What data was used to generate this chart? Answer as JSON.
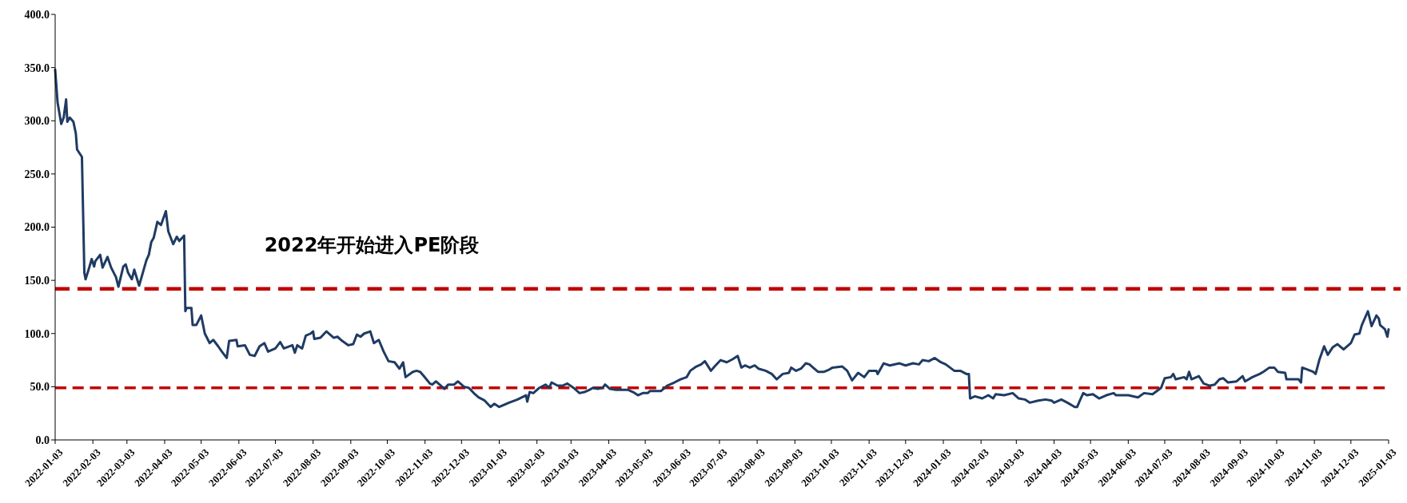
{
  "chart_data": {
    "type": "line",
    "annotations": [
      "2022年开始进入PE阶段"
    ],
    "x": [
      "2022-01-03",
      "2022-01-05",
      "2022-01-08",
      "2022-01-10",
      "2022-01-12",
      "2022-01-13",
      "2022-01-15",
      "2022-01-18",
      "2022-01-20",
      "2022-01-21",
      "2022-01-25",
      "2022-01-27",
      "2022-01-28",
      "2022-01-31",
      "2022-02-02",
      "2022-02-04",
      "2022-02-05",
      "2022-02-09",
      "2022-02-11",
      "2022-02-15",
      "2022-02-18",
      "2022-02-22",
      "2022-02-24",
      "2022-02-28",
      "2022-03-02",
      "2022-03-04",
      "2022-03-07",
      "2022-03-09",
      "2022-03-13",
      "2022-03-19",
      "2022-03-21",
      "2022-03-23",
      "2022-03-25",
      "2022-03-28",
      "2022-03-31",
      "2022-04-04",
      "2022-04-06",
      "2022-04-10",
      "2022-04-13",
      "2022-04-15",
      "2022-04-19",
      "2022-04-20",
      "2022-04-21",
      "2022-04-25",
      "2022-04-26",
      "2022-04-29",
      "2022-05-03",
      "2022-05-06",
      "2022-05-10",
      "2022-05-13",
      "2022-05-17",
      "2022-05-20",
      "2022-05-24",
      "2022-05-26",
      "2022-06-01",
      "2022-06-02",
      "2022-06-08",
      "2022-06-12",
      "2022-06-16",
      "2022-06-20",
      "2022-06-24",
      "2022-06-27",
      "2022-07-03",
      "2022-07-07",
      "2022-07-10",
      "2022-07-17",
      "2022-07-19",
      "2022-07-21",
      "2022-07-25",
      "2022-07-28",
      "2022-08-01",
      "2022-08-03",
      "2022-08-04",
      "2022-08-09",
      "2022-08-14",
      "2022-08-20",
      "2022-08-23",
      "2022-08-27",
      "2022-09-01",
      "2022-09-05",
      "2022-09-08",
      "2022-09-11",
      "2022-09-14",
      "2022-09-19",
      "2022-09-22",
      "2022-09-26",
      "2022-09-30",
      "2022-10-04",
      "2022-10-09",
      "2022-10-13",
      "2022-10-16",
      "2022-10-18",
      "2022-10-24",
      "2022-10-27",
      "2022-10-30",
      "2022-11-02",
      "2022-11-07",
      "2022-11-09",
      "2022-11-12",
      "2022-11-19",
      "2022-11-22",
      "2022-11-27",
      "2022-11-30",
      "2022-12-05",
      "2022-12-09",
      "2022-12-14",
      "2022-12-17",
      "2022-12-22",
      "2022-12-27",
      "2022-12-30",
      "2023-01-03",
      "2023-01-11",
      "2023-01-18",
      "2023-01-25",
      "2023-01-26",
      "2023-01-28",
      "2023-01-31",
      "2023-02-05",
      "2023-02-10",
      "2023-02-13",
      "2023-02-15",
      "2023-02-20",
      "2023-02-24",
      "2023-02-28",
      "2023-03-05",
      "2023-03-10",
      "2023-03-14",
      "2023-03-18",
      "2023-03-21",
      "2023-03-25",
      "2023-03-29",
      "2023-03-31",
      "2023-04-04",
      "2023-04-09",
      "2023-04-14",
      "2023-04-19",
      "2023-04-23",
      "2023-04-27",
      "2023-05-01",
      "2023-05-05",
      "2023-05-07",
      "2023-05-16",
      "2023-05-21",
      "2023-05-27",
      "2023-06-01",
      "2023-06-06",
      "2023-06-09",
      "2023-06-14",
      "2023-06-18",
      "2023-06-21",
      "2023-06-26",
      "2023-06-29",
      "2023-07-04",
      "2023-07-09",
      "2023-07-14",
      "2023-07-18",
      "2023-07-21",
      "2023-07-24",
      "2023-07-28",
      "2023-08-01",
      "2023-08-04",
      "2023-08-10",
      "2023-08-15",
      "2023-08-19",
      "2023-08-24",
      "2023-08-29",
      "2023-08-31",
      "2023-09-04",
      "2023-09-08",
      "2023-09-12",
      "2023-09-15",
      "2023-09-22",
      "2023-09-27",
      "2023-10-01",
      "2023-10-04",
      "2023-10-12",
      "2023-10-16",
      "2023-10-20",
      "2023-10-25",
      "2023-10-30",
      "2023-11-03",
      "2023-11-09",
      "2023-11-10",
      "2023-11-15",
      "2023-11-20",
      "2023-11-28",
      "2023-12-03",
      "2023-12-09",
      "2023-12-14",
      "2023-12-17",
      "2023-12-22",
      "2023-12-27",
      "2024-01-01",
      "2024-01-05",
      "2024-01-12",
      "2024-01-17",
      "2024-01-22",
      "2024-01-24",
      "2024-01-25",
      "2024-01-29",
      "2024-02-04",
      "2024-02-09",
      "2024-02-13",
      "2024-02-15",
      "2024-02-22",
      "2024-02-29",
      "2024-03-05",
      "2024-03-10",
      "2024-03-14",
      "2024-03-21",
      "2024-03-27",
      "2024-04-01",
      "2024-04-03",
      "2024-04-09",
      "2024-04-14",
      "2024-04-20",
      "2024-04-22",
      "2024-04-25",
      "2024-04-27",
      "2024-04-30",
      "2024-05-05",
      "2024-05-10",
      "2024-05-16",
      "2024-05-22",
      "2024-05-24",
      "2024-06-03",
      "2024-06-11",
      "2024-06-16",
      "2024-06-23",
      "2024-06-30",
      "2024-07-03",
      "2024-07-08",
      "2024-07-10",
      "2024-07-12",
      "2024-07-19",
      "2024-07-21",
      "2024-07-23",
      "2024-07-25",
      "2024-07-31",
      "2024-08-04",
      "2024-08-09",
      "2024-08-13",
      "2024-08-17",
      "2024-08-20",
      "2024-08-24",
      "2024-08-31",
      "2024-09-05",
      "2024-09-07",
      "2024-09-13",
      "2024-09-19",
      "2024-09-22",
      "2024-09-27",
      "2024-10-01",
      "2024-10-04",
      "2024-10-10",
      "2024-10-11",
      "2024-10-21",
      "2024-10-23",
      "2024-10-24",
      "2024-11-02",
      "2024-11-04",
      "2024-11-07",
      "2024-11-11",
      "2024-11-14",
      "2024-11-18",
      "2024-11-22",
      "2024-11-27",
      "2024-12-03",
      "2024-12-06",
      "2024-12-10",
      "2024-12-12",
      "2024-12-17",
      "2024-12-20",
      "2024-12-24",
      "2024-12-26",
      "2024-12-27",
      "2024-12-31",
      "2025-01-02",
      "2025-01-03"
    ],
    "series": [
      {
        "color": "#1f3b63",
        "values": [
          348,
          317,
          297,
          303,
          320,
          299,
          303,
          299,
          288,
          273,
          266,
          157,
          151,
          162,
          170,
          163,
          168,
          174,
          162,
          172,
          162,
          153,
          144,
          163,
          165,
          157,
          151,
          160,
          145,
          169,
          174,
          186,
          190,
          205,
          202,
          215,
          196,
          184,
          191,
          187,
          192,
          121,
          124,
          124,
          108,
          108,
          117,
          100,
          91,
          94,
          88,
          83,
          77,
          93,
          94,
          88,
          89,
          80,
          79,
          88,
          91,
          83,
          86,
          92,
          86,
          89,
          82,
          89,
          86,
          98,
          100,
          102,
          95,
          96,
          102,
          96,
          97,
          93,
          89,
          90,
          99,
          97,
          100,
          102,
          91,
          94,
          83,
          74,
          73,
          67,
          73,
          59,
          64,
          65,
          64,
          60,
          53,
          52,
          55,
          48,
          52,
          52,
          55,
          50,
          49,
          43,
          40,
          37,
          31,
          34,
          31,
          35,
          38,
          42,
          36,
          45,
          44,
          49,
          52,
          49,
          54,
          51,
          51,
          53,
          49,
          44,
          45,
          47,
          49,
          48,
          49,
          52,
          48,
          47,
          47,
          47,
          45,
          42,
          44,
          44,
          46,
          46,
          51,
          54,
          57,
          59,
          65,
          69,
          71,
          74,
          65,
          69,
          75,
          73,
          76,
          79,
          68,
          70,
          68,
          70,
          67,
          65,
          62,
          57,
          62,
          63,
          68,
          65,
          67,
          72,
          71,
          64,
          64,
          66,
          68,
          69,
          65,
          56,
          63,
          59,
          65,
          65,
          62,
          72,
          70,
          72,
          70,
          72,
          71,
          75,
          74,
          77,
          73,
          71,
          65,
          65,
          62,
          62,
          39,
          41,
          39,
          42,
          39,
          43,
          42,
          44,
          39,
          38,
          35,
          37,
          38,
          37,
          35,
          38,
          35,
          31,
          31,
          39,
          44,
          42,
          43,
          39,
          42,
          44,
          42,
          42,
          40,
          44,
          43,
          49,
          58,
          59,
          62,
          57,
          59,
          57,
          64,
          57,
          60,
          53,
          51,
          52,
          57,
          58,
          54,
          55,
          60,
          55,
          59,
          62,
          64,
          68,
          68,
          64,
          63,
          57,
          57,
          54,
          68,
          64,
          62,
          75,
          88,
          80,
          87,
          90,
          85,
          91,
          99,
          100,
          108,
          121,
          107,
          117,
          114,
          108,
          104,
          97,
          104
        ]
      }
    ],
    "xlim": [
      "2022-01-03",
      "2025-01-03"
    ],
    "xticks": [
      "2022-01-03",
      "2022-02-03",
      "2022-03-03",
      "2022-04-03",
      "2022-05-03",
      "2022-06-03",
      "2022-07-03",
      "2022-08-03",
      "2022-09-03",
      "2022-10-03",
      "2022-11-03",
      "2022-12-03",
      "2023-01-03",
      "2023-02-03",
      "2023-03-03",
      "2023-04-03",
      "2023-05-03",
      "2023-06-03",
      "2023-07-03",
      "2023-08-03",
      "2023-09-03",
      "2023-10-03",
      "2023-11-03",
      "2023-12-03",
      "2024-01-03",
      "2024-02-03",
      "2024-03-03",
      "2024-04-03",
      "2024-05-03",
      "2024-06-03",
      "2024-07-03",
      "2024-08-03",
      "2024-09-03",
      "2024-10-03",
      "2024-11-03",
      "2024-12-03",
      "2025-01-03"
    ],
    "ylim": [
      0,
      400
    ],
    "yticks": [
      {
        "value": 0,
        "label": "0.0"
      },
      {
        "value": 50,
        "label": "50.0"
      },
      {
        "value": 100,
        "label": "100.0"
      },
      {
        "value": 150,
        "label": "150.0"
      },
      {
        "value": 200,
        "label": "200.0"
      },
      {
        "value": 250,
        "label": "250.0"
      },
      {
        "value": 300,
        "label": "300.0"
      },
      {
        "value": 350,
        "label": "350.0"
      },
      {
        "value": 400,
        "label": "400.0"
      }
    ],
    "ref_lines": [
      {
        "axis": "y",
        "value": 142,
        "color": "#c00000",
        "line_style": "dashed"
      },
      {
        "axis": "y",
        "value": 49,
        "color": "#c00000",
        "line_style": "dashed"
      }
    ],
    "line_style": "solid",
    "marker": "none",
    "grid": false
  }
}
